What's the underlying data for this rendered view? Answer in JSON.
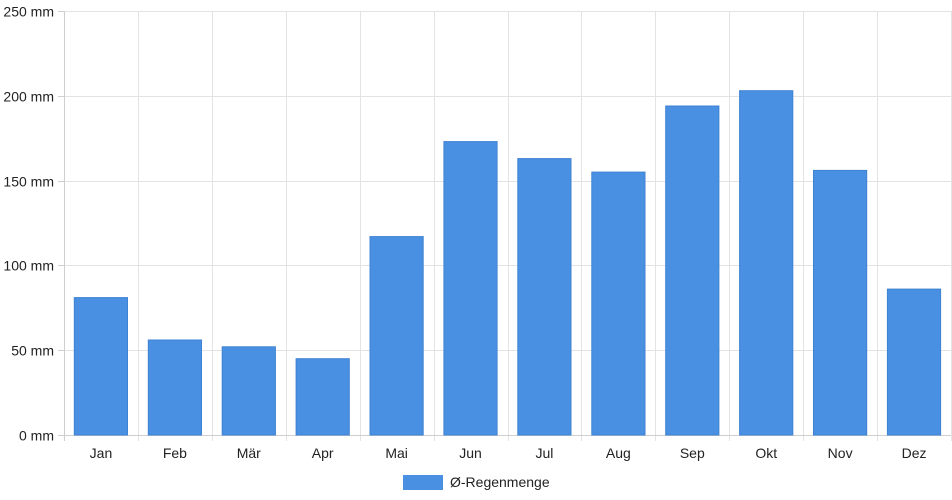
{
  "chart_data": {
    "type": "bar",
    "categories": [
      "Jan",
      "Feb",
      "Mär",
      "Apr",
      "Mai",
      "Jun",
      "Jul",
      "Aug",
      "Sep",
      "Okt",
      "Nov",
      "Dez"
    ],
    "series": [
      {
        "name": "Ø-Regenmenge",
        "color": "#4a90e2",
        "values": [
          81,
          56,
          52,
          45,
          117,
          173,
          163,
          155,
          194,
          203,
          156,
          86
        ]
      }
    ],
    "yticks": [
      "0 mm",
      "50 mm",
      "100 mm",
      "150 mm",
      "200 mm",
      "250 mm"
    ],
    "ylim": [
      0,
      250
    ],
    "unit": "mm",
    "grid": true,
    "legend_position": "bottom-center"
  }
}
